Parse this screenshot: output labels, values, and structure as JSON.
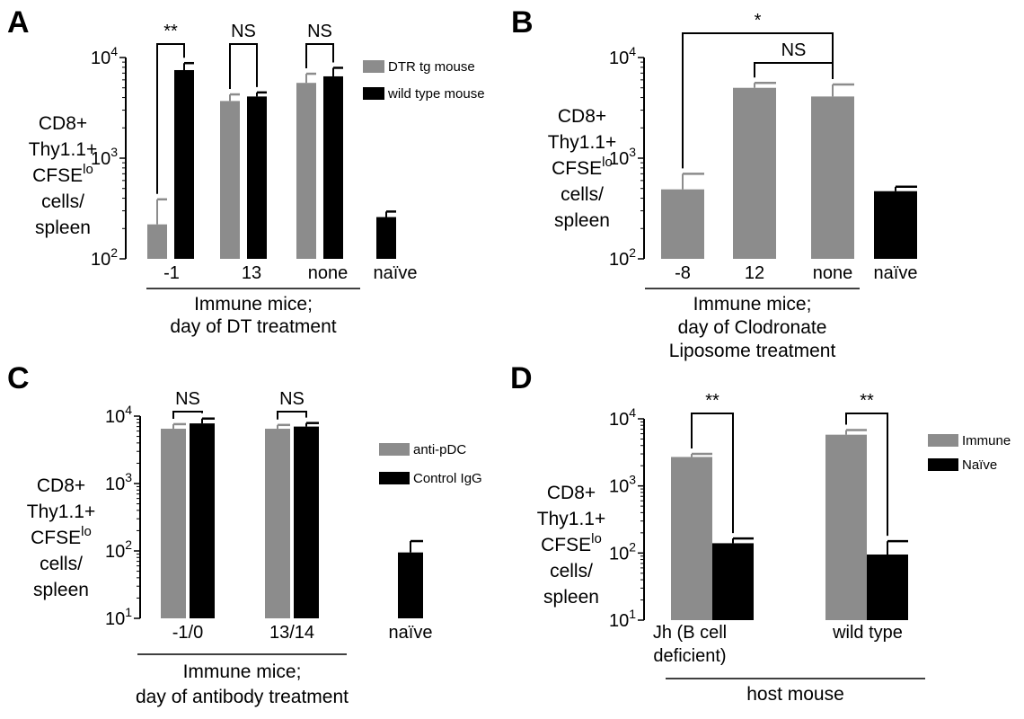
{
  "chart_data": [
    {
      "panel": "A",
      "type": "bar",
      "yscale": "log",
      "ylim": [
        100,
        10000
      ],
      "y_ticks": [
        {
          "base": "10",
          "exp": "2",
          "v": 100
        },
        {
          "base": "10",
          "exp": "3",
          "v": 1000
        },
        {
          "base": "10",
          "exp": "4",
          "v": 10000
        }
      ],
      "ylabel_lines": [
        {
          "text": "CD8+"
        },
        {
          "text": "Thy1.1+"
        },
        {
          "text": "CFSE",
          "sup": "lo"
        },
        {
          "text": "cells/"
        },
        {
          "text": "spleen"
        }
      ],
      "categories": [
        "-1",
        "13",
        "none",
        "naïve"
      ],
      "series": [
        {
          "name": "DTR tg mouse",
          "color": "#8c8c8c",
          "values": [
            220,
            3700,
            5600,
            null
          ],
          "errors": [
            390,
            4300,
            6900,
            null
          ]
        },
        {
          "name": "wild type mouse",
          "color": "#000000",
          "values": [
            7500,
            4100,
            6500,
            260
          ],
          "errors": [
            8800,
            4500,
            7900,
            295
          ]
        }
      ],
      "group_label_lines": [
        "Immune mice;",
        "day of DT treatment"
      ],
      "group_categories": [
        0,
        1,
        2
      ],
      "significance": [
        {
          "label": "**",
          "from": [
            0,
            0
          ],
          "to": [
            0,
            1
          ]
        },
        {
          "label": "NS",
          "from": [
            1,
            0
          ],
          "to": [
            1,
            1
          ]
        },
        {
          "label": "NS",
          "from": [
            2,
            0
          ],
          "to": [
            2,
            1
          ]
        }
      ]
    },
    {
      "panel": "B",
      "type": "bar",
      "yscale": "log",
      "ylim": [
        100,
        10000
      ],
      "y_ticks": [
        {
          "base": "10",
          "exp": "2",
          "v": 100
        },
        {
          "base": "10",
          "exp": "3",
          "v": 1000
        },
        {
          "base": "10",
          "exp": "4",
          "v": 10000
        }
      ],
      "ylabel_lines": [
        {
          "text": "CD8+"
        },
        {
          "text": "Thy1.1+"
        },
        {
          "text": "CFSE",
          "sup": "lo"
        },
        {
          "text": "cells/"
        },
        {
          "text": "spleen"
        }
      ],
      "categories": [
        "-8",
        "12",
        "none",
        "naïve"
      ],
      "series": [
        {
          "name": "",
          "color": "#8c8c8c",
          "values": [
            490,
            5000,
            4100,
            null
          ],
          "errors": [
            700,
            5600,
            5400,
            null
          ]
        },
        {
          "name": "",
          "color": "#000000",
          "values": [
            null,
            null,
            null,
            470
          ],
          "errors": [
            null,
            null,
            null,
            520
          ]
        }
      ],
      "group_label_lines": [
        "Immune mice;",
        "day of Clodronate",
        "Liposome treatment"
      ],
      "group_categories": [
        0,
        1,
        2
      ],
      "significance": [
        {
          "label": "*",
          "from": [
            0,
            0
          ],
          "to": [
            2,
            0
          ]
        },
        {
          "label": "NS",
          "from": [
            1,
            0
          ],
          "to": [
            2,
            0
          ]
        }
      ]
    },
    {
      "panel": "C",
      "type": "bar",
      "yscale": "log",
      "ylim": [
        10,
        10000
      ],
      "y_ticks": [
        {
          "base": "10",
          "exp": "1",
          "v": 10
        },
        {
          "base": "10",
          "exp": "2",
          "v": 100
        },
        {
          "base": "10",
          "exp": "3",
          "v": 1000
        },
        {
          "base": "10",
          "exp": "4",
          "v": 10000
        }
      ],
      "ylabel_lines": [
        {
          "text": "CD8+"
        },
        {
          "text": "Thy1.1+"
        },
        {
          "text": "CFSE",
          "sup": "lo"
        },
        {
          "text": "cells/"
        },
        {
          "text": "spleen"
        }
      ],
      "categories": [
        "-1/0",
        "13/14",
        "naïve"
      ],
      "series": [
        {
          "name": "anti-pDC",
          "color": "#8c8c8c",
          "values": [
            6500,
            6500,
            null
          ],
          "errors": [
            7600,
            7400,
            null
          ]
        },
        {
          "name": "Control IgG",
          "color": "#000000",
          "values": [
            7800,
            7000,
            95
          ],
          "errors": [
            9200,
            7900,
            140
          ]
        }
      ],
      "group_label_lines": [
        "Immune mice;",
        "day of antibody treatment"
      ],
      "group_categories": [
        0,
        1
      ],
      "significance": [
        {
          "label": "NS",
          "from": [
            0,
            0
          ],
          "to": [
            0,
            1
          ]
        },
        {
          "label": "NS",
          "from": [
            1,
            0
          ],
          "to": [
            1,
            1
          ]
        }
      ]
    },
    {
      "panel": "D",
      "type": "bar",
      "yscale": "log",
      "ylim": [
        10,
        10000
      ],
      "y_ticks": [
        {
          "base": "10",
          "exp": "1",
          "v": 10
        },
        {
          "base": "10",
          "exp": "2",
          "v": 100
        },
        {
          "base": "10",
          "exp": "3",
          "v": 1000
        },
        {
          "base": "10",
          "exp": "4",
          "v": 10000
        }
      ],
      "ylabel_lines": [
        {
          "text": "CD8+"
        },
        {
          "text": "Thy1.1+"
        },
        {
          "text": "CFSE",
          "sup": "lo"
        },
        {
          "text": "cells/"
        },
        {
          "text": "spleen"
        }
      ],
      "categories": [
        "Jh (B cell\ndeficient)",
        "wild type"
      ],
      "series": [
        {
          "name": "Immune",
          "color": "#8c8c8c",
          "values": [
            2700,
            5800
          ],
          "errors": [
            3000,
            6800
          ]
        },
        {
          "name": "Naïve",
          "color": "#000000",
          "values": [
            140,
            95
          ],
          "errors": [
            165,
            150
          ]
        }
      ],
      "group_label_lines": [
        "host mouse"
      ],
      "group_categories": [
        0,
        1
      ],
      "significance": [
        {
          "label": "**",
          "from": [
            0,
            0
          ],
          "to": [
            0,
            1
          ]
        },
        {
          "label": "**",
          "from": [
            1,
            0
          ],
          "to": [
            1,
            1
          ]
        }
      ]
    }
  ]
}
